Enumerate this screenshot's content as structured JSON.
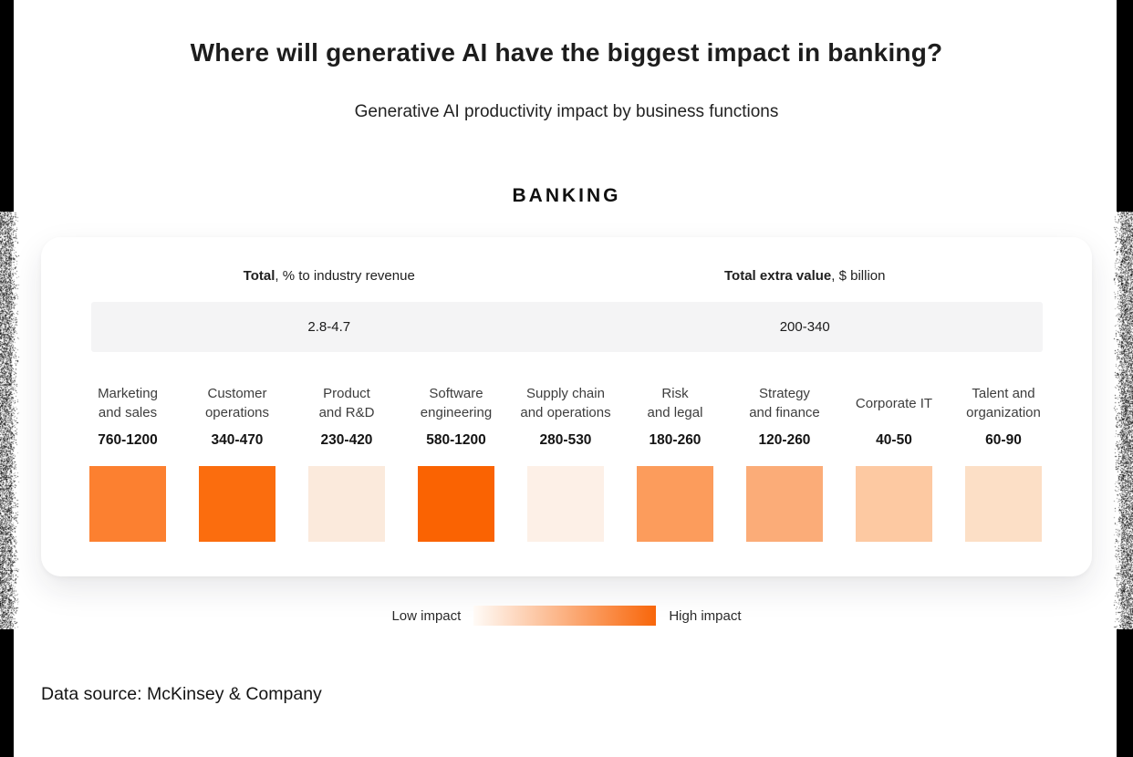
{
  "page": {
    "title": "Where will generative AI have the biggest impact in banking?",
    "subtitle": "Generative AI productivity impact by business functions",
    "section_label": "BANKING",
    "data_source": "Data source: McKinsey & Company"
  },
  "card": {
    "totals": [
      {
        "bold": "Total",
        "rest": ", % to industry revenue",
        "value": "2.8-4.7"
      },
      {
        "bold": "Total extra value",
        "rest": ", $ billion",
        "value": "200-340"
      }
    ]
  },
  "legend": {
    "low_label": "Low impact",
    "high_label": "High impact",
    "gradient_from": "#FFFBF7",
    "gradient_to": "#F8660A"
  },
  "chart_data": {
    "type": "heatmap",
    "title": "Where will generative AI have the biggest impact in banking?",
    "subtitle": "Generative AI productivity impact by business functions",
    "group": "BANKING",
    "totals": {
      "percent_to_industry_revenue": "2.8-4.7",
      "total_extra_value_usd_billion": "200-340"
    },
    "categories": [
      "Marketing and sales",
      "Customer operations",
      "Product and R&D",
      "Software engineering",
      "Supply chain and operations",
      "Risk and legal",
      "Strategy and finance",
      "Corporate IT",
      "Talent and organization"
    ],
    "category_labels": [
      "Marketing\nand sales",
      "Customer\noperations",
      "Product\nand R&D",
      "Software\nengineering",
      "Supply chain\nand operations",
      "Risk\nand legal",
      "Strategy\nand finance",
      "Corporate IT",
      "Talent and\norganization"
    ],
    "values": [
      "760-1200",
      "340-470",
      "230-420",
      "580-1200",
      "280-530",
      "180-260",
      "120-260",
      "40-50",
      "60-90"
    ],
    "values_numeric": [
      [
        760,
        1200
      ],
      [
        340,
        470
      ],
      [
        230,
        420
      ],
      [
        580,
        1200
      ],
      [
        280,
        530
      ],
      [
        180,
        260
      ],
      [
        120,
        260
      ],
      [
        40,
        50
      ],
      [
        60,
        90
      ]
    ],
    "cell_colors": [
      "#FC8030",
      "#FB6D0E",
      "#FBEADC",
      "#FA6302",
      "#FDF0E7",
      "#FC9C5C",
      "#FBAC78",
      "#FDC9A2",
      "#FCDFC6"
    ],
    "legend": {
      "low": "Low impact",
      "high": "High impact"
    }
  }
}
